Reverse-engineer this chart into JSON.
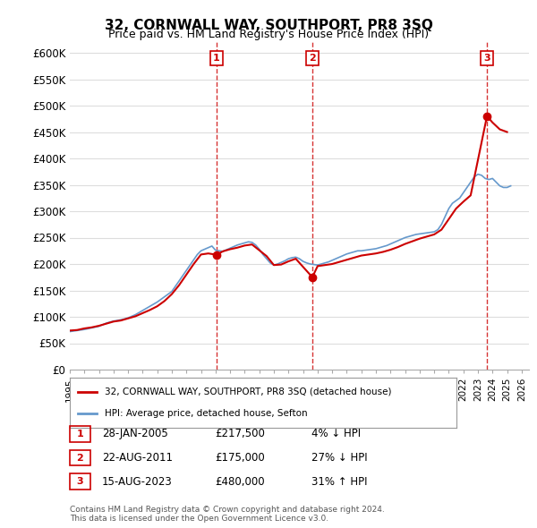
{
  "title": "32, CORNWALL WAY, SOUTHPORT, PR8 3SQ",
  "subtitle": "Price paid vs. HM Land Registry's House Price Index (HPI)",
  "ylabel_ticks": [
    "£0",
    "£50K",
    "£100K",
    "£150K",
    "£200K",
    "£250K",
    "£300K",
    "£350K",
    "£400K",
    "£450K",
    "£500K",
    "£550K",
    "£600K"
  ],
  "ytick_values": [
    0,
    50000,
    100000,
    150000,
    200000,
    250000,
    300000,
    350000,
    400000,
    450000,
    500000,
    550000,
    600000
  ],
  "ylim": [
    0,
    620000
  ],
  "xlim_start": 1995.0,
  "xlim_end": 2026.5,
  "hpi_color": "#6699cc",
  "property_color": "#cc0000",
  "dashed_line_color": "#cc0000",
  "background_color": "#ffffff",
  "grid_color": "#dddddd",
  "transactions": [
    {
      "label": "1",
      "date": "28-JAN-2005",
      "price": 217500,
      "x": 2005.07,
      "hpi_pct": "4% ↓ HPI"
    },
    {
      "label": "2",
      "date": "22-AUG-2011",
      "price": 175000,
      "x": 2011.64,
      "hpi_pct": "27% ↓ HPI"
    },
    {
      "label": "3",
      "date": "15-AUG-2023",
      "price": 480000,
      "x": 2023.62,
      "hpi_pct": "31% ↑ HPI"
    }
  ],
  "legend_property_label": "32, CORNWALL WAY, SOUTHPORT, PR8 3SQ (detached house)",
  "legend_hpi_label": "HPI: Average price, detached house, Sefton",
  "footnote": "Contains HM Land Registry data © Crown copyright and database right 2024.\nThis data is licensed under the Open Government Licence v3.0.",
  "hpi_years": [
    1995,
    1995.25,
    1995.5,
    1995.75,
    1996,
    1996.25,
    1996.5,
    1996.75,
    1997,
    1997.25,
    1997.5,
    1997.75,
    1998,
    1998.25,
    1998.5,
    1998.75,
    1999,
    1999.25,
    1999.5,
    1999.75,
    2000,
    2000.25,
    2000.5,
    2000.75,
    2001,
    2001.25,
    2001.5,
    2001.75,
    2002,
    2002.25,
    2002.5,
    2002.75,
    2003,
    2003.25,
    2003.5,
    2003.75,
    2004,
    2004.25,
    2004.5,
    2004.75,
    2005,
    2005.25,
    2005.5,
    2005.75,
    2006,
    2006.25,
    2006.5,
    2006.75,
    2007,
    2007.25,
    2007.5,
    2007.75,
    2008,
    2008.25,
    2008.5,
    2008.75,
    2009,
    2009.25,
    2009.5,
    2009.75,
    2010,
    2010.25,
    2010.5,
    2010.75,
    2011,
    2011.25,
    2011.5,
    2011.75,
    2012,
    2012.25,
    2012.5,
    2012.75,
    2013,
    2013.25,
    2013.5,
    2013.75,
    2014,
    2014.25,
    2014.5,
    2014.75,
    2015,
    2015.25,
    2015.5,
    2015.75,
    2016,
    2016.25,
    2016.5,
    2016.75,
    2017,
    2017.25,
    2017.5,
    2017.75,
    2018,
    2018.25,
    2018.5,
    2018.75,
    2019,
    2019.25,
    2019.5,
    2019.75,
    2020,
    2020.25,
    2020.5,
    2020.75,
    2021,
    2021.25,
    2021.5,
    2021.75,
    2022,
    2022.25,
    2022.5,
    2022.75,
    2023,
    2023.25,
    2023.5,
    2023.75,
    2024,
    2024.25,
    2024.5,
    2024.75,
    2025,
    2025.25
  ],
  "hpi_values": [
    72000,
    73000,
    74000,
    75000,
    76000,
    77500,
    79000,
    80500,
    82000,
    85000,
    88000,
    90000,
    92000,
    93000,
    94500,
    96000,
    98000,
    101000,
    104000,
    108000,
    112000,
    116000,
    120000,
    124000,
    128000,
    133000,
    138000,
    143000,
    148000,
    158000,
    168000,
    178000,
    188000,
    198000,
    208000,
    218000,
    225000,
    228000,
    231000,
    234000,
    226000,
    225000,
    224000,
    227000,
    230000,
    233000,
    236000,
    238000,
    240000,
    242000,
    241000,
    236000,
    228000,
    218000,
    210000,
    202000,
    198000,
    200000,
    203000,
    206000,
    210000,
    212000,
    213000,
    210000,
    205000,
    202000,
    200000,
    199000,
    198000,
    200000,
    202000,
    204000,
    207000,
    210000,
    213000,
    216000,
    219000,
    221000,
    223000,
    225000,
    225000,
    226000,
    227000,
    228000,
    229000,
    231000,
    233000,
    235000,
    238000,
    241000,
    244000,
    247000,
    250000,
    252000,
    254000,
    256000,
    257000,
    258000,
    259000,
    260000,
    261000,
    265000,
    275000,
    290000,
    305000,
    315000,
    320000,
    325000,
    335000,
    345000,
    355000,
    365000,
    370000,
    368000,
    362000,
    360000,
    362000,
    355000,
    348000,
    345000,
    345000,
    348000
  ],
  "property_years": [
    1995,
    1995.5,
    1996,
    1996.5,
    1997,
    1997.5,
    1998,
    1998.5,
    1999,
    1999.5,
    2000,
    2000.5,
    2001,
    2001.5,
    2002,
    2002.5,
    2003,
    2003.5,
    2004,
    2004.5,
    2005.07,
    2005.5,
    2006,
    2006.5,
    2007,
    2007.5,
    2008,
    2008.5,
    2009,
    2009.5,
    2010,
    2010.5,
    2011.64,
    2012,
    2012.5,
    2013,
    2013.5,
    2014,
    2014.5,
    2015,
    2015.5,
    2016,
    2016.5,
    2017,
    2017.5,
    2018,
    2018.5,
    2019,
    2019.5,
    2020,
    2020.5,
    2021,
    2021.5,
    2022,
    2022.5,
    2023.62,
    2024,
    2024.5,
    2025
  ],
  "property_values": [
    74000,
    75000,
    78000,
    80000,
    83000,
    87000,
    91000,
    93000,
    97000,
    101000,
    107000,
    113000,
    120000,
    130000,
    143000,
    160000,
    180000,
    200000,
    218000,
    220000,
    217500,
    224000,
    228000,
    231000,
    235000,
    237000,
    226000,
    215000,
    198000,
    199000,
    205000,
    210000,
    175000,
    196000,
    198000,
    200000,
    204000,
    208000,
    212000,
    216000,
    218000,
    220000,
    223000,
    227000,
    232000,
    238000,
    243000,
    248000,
    252000,
    256000,
    265000,
    285000,
    305000,
    318000,
    330000,
    480000,
    468000,
    455000,
    450000
  ]
}
